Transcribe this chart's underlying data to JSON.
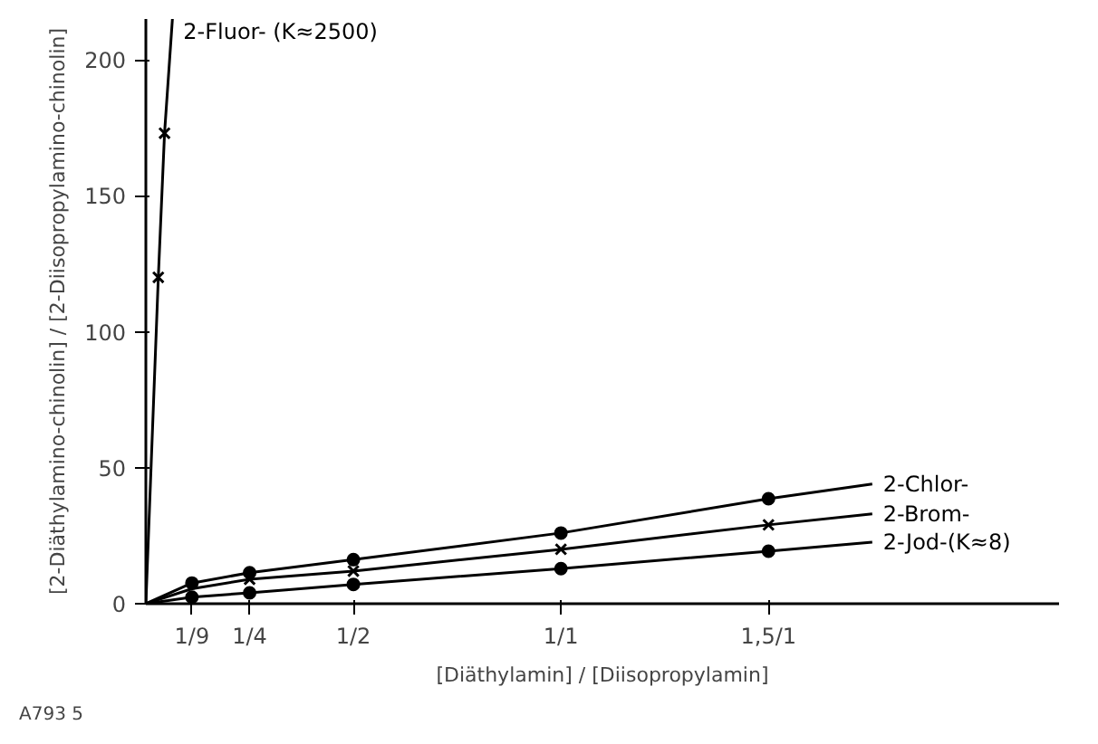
{
  "chart_data": {
    "type": "scatter",
    "xlabel": "[Diäthylamin] / [Diisopropylamin]",
    "ylabel": "[2-Diäthylamino-chinolin] / [2-Diisopropylamino-chinolin]",
    "xlim": [
      0,
      2.2
    ],
    "ylim": [
      0,
      215
    ],
    "xticks": [
      {
        "value": 0.111,
        "label": "1/9"
      },
      {
        "value": 0.25,
        "label": "1/4"
      },
      {
        "value": 0.5,
        "label": "1/2"
      },
      {
        "value": 1,
        "label": "1/1"
      },
      {
        "value": 1.5,
        "label": "1,5/1"
      }
    ],
    "yticks": [
      0,
      50,
      100,
      150,
      200
    ],
    "grid": false,
    "series": [
      {
        "type": "line",
        "name": "2-Fluor- (K≈2500)",
        "color": "#000000",
        "x": [
          0,
          0.03,
          0.045,
          0.064
        ],
        "values": [
          0,
          120,
          173,
          215
        ]
      },
      {
        "color": "#000000",
        "x": [
          0.03,
          0.045
        ],
        "values": [
          120,
          173
        ],
        "marker": "cross"
      },
      {
        "type": "line",
        "name": "2-Chlor-",
        "color": "#000000",
        "x": [
          0,
          0.111,
          0.25,
          0.5,
          1,
          1.5,
          1.75
        ],
        "values": [
          0,
          7.6,
          11.4,
          16.2,
          26,
          38.6,
          44
        ]
      },
      {
        "color": "#000000",
        "x": [
          0.111,
          0.25,
          0.5,
          1,
          1.5
        ],
        "values": [
          7.6,
          11.4,
          16.2,
          26,
          38.6
        ],
        "marker": "circle"
      },
      {
        "type": "line",
        "name": "2-Brom-",
        "color": "#000000",
        "x": [
          0,
          0.111,
          0.25,
          0.5,
          1,
          1.5,
          1.75
        ],
        "values": [
          0,
          5.5,
          9,
          12,
          20,
          29,
          33
        ]
      },
      {
        "color": "#000000",
        "x": [
          0.25,
          0.5,
          1,
          1.5
        ],
        "values": [
          9,
          12,
          20,
          29
        ],
        "marker": "cross"
      },
      {
        "type": "line",
        "name": "2-Jod-(K≈8)",
        "color": "#000000",
        "x": [
          0,
          0.111,
          0.25,
          0.5,
          1,
          1.5,
          1.75
        ],
        "values": [
          0,
          2.4,
          4,
          7.1,
          12.9,
          19.3,
          22.6
        ]
      },
      {
        "color": "#000000",
        "x": [
          0.111,
          0.25,
          0.5,
          1,
          1.5
        ],
        "values": [
          2.4,
          4,
          7.1,
          12.9,
          19.3
        ],
        "marker": "circle"
      }
    ],
    "annotations": [
      "A793 5"
    ]
  }
}
